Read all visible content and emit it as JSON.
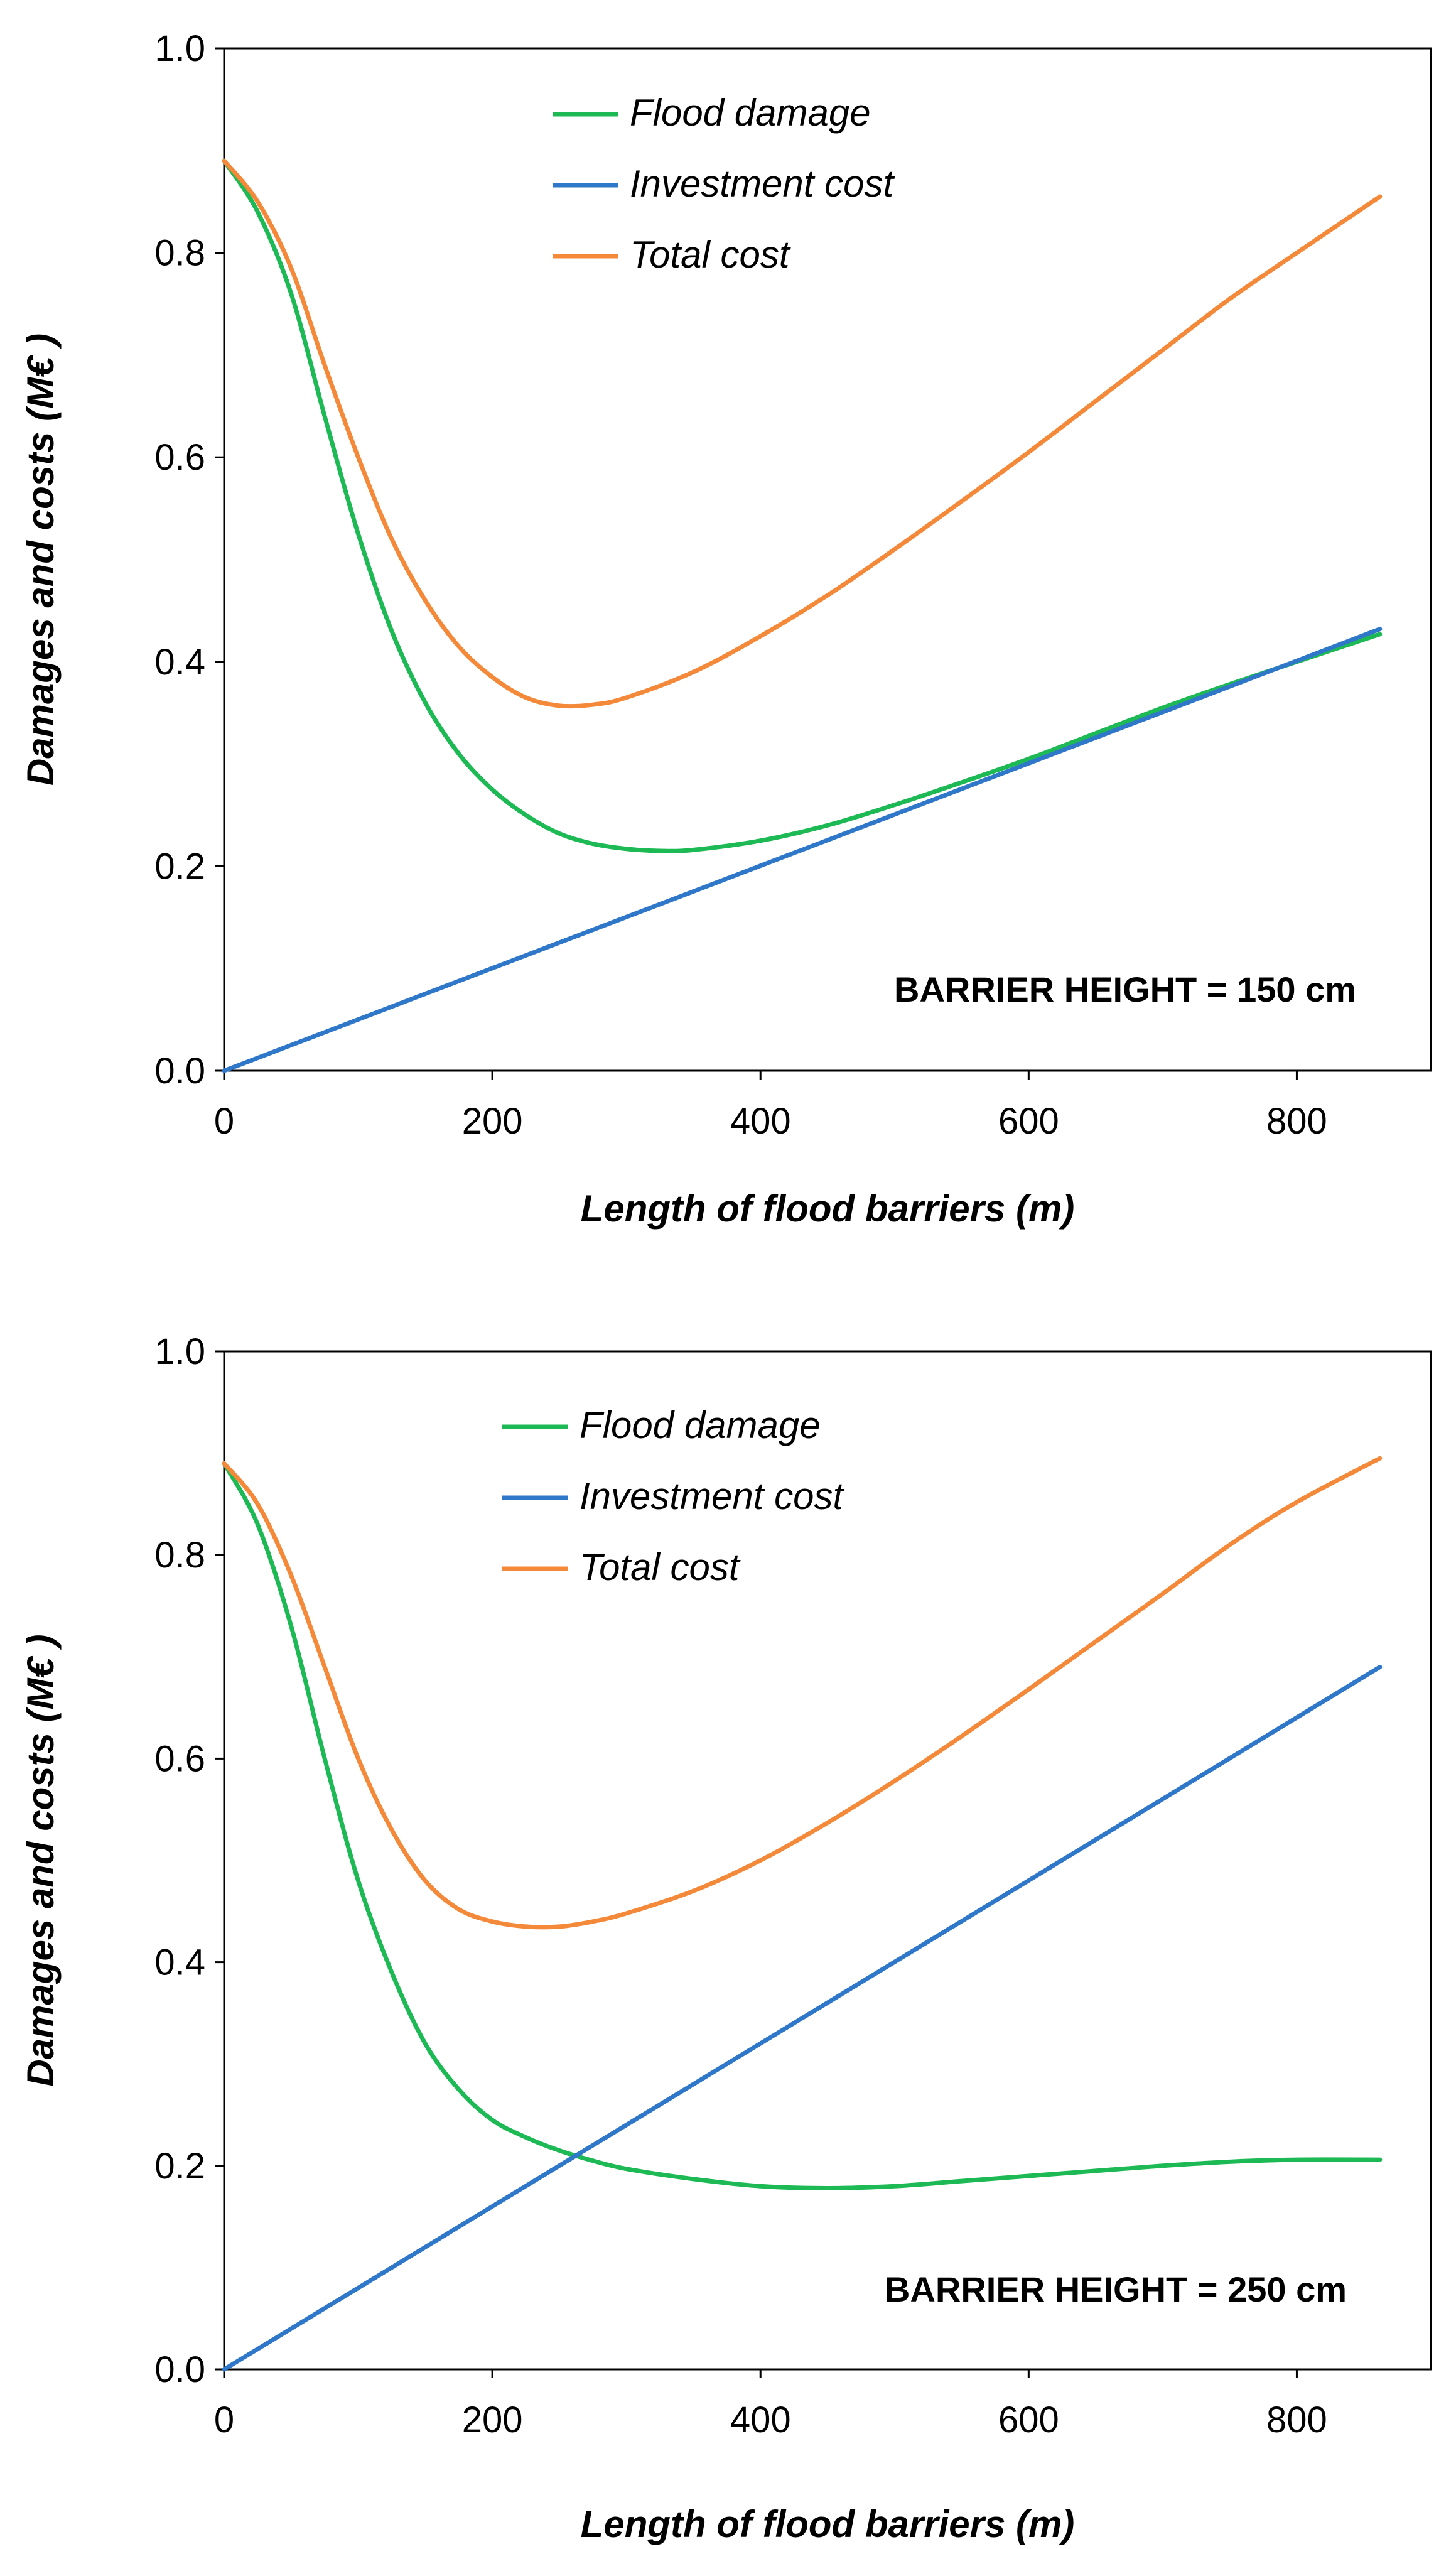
{
  "colors": {
    "flood_damage": "#1db954",
    "investment_cost": "#2f78c9",
    "total_cost": "#f5893a"
  },
  "chart_data": [
    {
      "type": "line",
      "annotation": "BARRIER HEIGHT = 150 cm",
      "xlabel": "Length of flood barriers (m)",
      "ylabel": "Damages and costs (M€ )",
      "xlim": [
        0,
        900
      ],
      "ylim": [
        0,
        1.0
      ],
      "xticks": [
        0,
        200,
        400,
        600,
        800
      ],
      "yticks": [
        0.0,
        0.2,
        0.4,
        0.6,
        0.8,
        1.0
      ],
      "xtick_labels": [
        "0",
        "200",
        "400",
        "600",
        "800"
      ],
      "ytick_labels": [
        "0.0",
        "0.2",
        "0.4",
        "0.6",
        "0.8",
        "1.0"
      ],
      "legend_position": "top-center",
      "series": [
        {
          "name": "Flood damage",
          "color": "#1db954",
          "x": [
            0,
            25,
            50,
            75,
            100,
            125,
            150,
            175,
            200,
            225,
            250,
            275,
            300,
            325,
            350,
            400,
            450,
            500,
            550,
            600,
            650,
            700,
            750,
            800,
            862
          ],
          "y": [
            0.89,
            0.84,
            0.76,
            0.64,
            0.525,
            0.43,
            0.36,
            0.31,
            0.275,
            0.25,
            0.232,
            0.222,
            0.217,
            0.215,
            0.216,
            0.225,
            0.24,
            0.26,
            0.282,
            0.305,
            0.33,
            0.355,
            0.378,
            0.4,
            0.427
          ]
        },
        {
          "name": "Investment cost",
          "color": "#2f78c9",
          "x": [
            0,
            862
          ],
          "y": [
            0.0,
            0.432
          ]
        },
        {
          "name": "Total cost",
          "color": "#f5893a",
          "x": [
            0,
            25,
            50,
            75,
            100,
            125,
            150,
            175,
            200,
            225,
            250,
            275,
            300,
            350,
            400,
            450,
            500,
            550,
            600,
            650,
            700,
            750,
            800,
            862
          ],
          "y": [
            0.89,
            0.85,
            0.785,
            0.69,
            0.6,
            0.52,
            0.46,
            0.415,
            0.385,
            0.365,
            0.357,
            0.358,
            0.365,
            0.39,
            0.425,
            0.465,
            0.51,
            0.557,
            0.605,
            0.655,
            0.705,
            0.755,
            0.8,
            0.855
          ]
        }
      ]
    },
    {
      "type": "line",
      "annotation": "BARRIER HEIGHT = 250 cm",
      "xlabel": "Length of flood barriers (m)",
      "ylabel": "Damages and costs (M€ )",
      "xlim": [
        0,
        900
      ],
      "ylim": [
        0,
        1.0
      ],
      "xticks": [
        0,
        200,
        400,
        600,
        800
      ],
      "yticks": [
        0.0,
        0.2,
        0.4,
        0.6,
        0.8,
        1.0
      ],
      "xtick_labels": [
        "0",
        "200",
        "400",
        "600",
        "800"
      ],
      "ytick_labels": [
        "0.0",
        "0.2",
        "0.4",
        "0.6",
        "0.8",
        "1.0"
      ],
      "legend_position": "top-center",
      "series": [
        {
          "name": "Flood damage",
          "color": "#1db954",
          "x": [
            0,
            25,
            50,
            75,
            100,
            125,
            150,
            175,
            200,
            225,
            250,
            275,
            300,
            350,
            400,
            450,
            500,
            550,
            600,
            650,
            700,
            750,
            800,
            862
          ],
          "y": [
            0.89,
            0.83,
            0.73,
            0.6,
            0.48,
            0.39,
            0.32,
            0.275,
            0.245,
            0.228,
            0.215,
            0.205,
            0.197,
            0.187,
            0.18,
            0.178,
            0.18,
            0.185,
            0.19,
            0.195,
            0.2,
            0.204,
            0.206,
            0.206
          ]
        },
        {
          "name": "Investment cost",
          "color": "#2f78c9",
          "x": [
            0,
            862
          ],
          "y": [
            0.0,
            0.69
          ]
        },
        {
          "name": "Total cost",
          "color": "#f5893a",
          "x": [
            0,
            25,
            50,
            75,
            100,
            125,
            150,
            175,
            200,
            225,
            250,
            275,
            300,
            350,
            400,
            450,
            500,
            550,
            600,
            650,
            700,
            750,
            800,
            862
          ],
          "y": [
            0.89,
            0.85,
            0.78,
            0.69,
            0.6,
            0.53,
            0.48,
            0.452,
            0.44,
            0.435,
            0.435,
            0.44,
            0.448,
            0.47,
            0.5,
            0.537,
            0.578,
            0.622,
            0.668,
            0.715,
            0.762,
            0.81,
            0.852,
            0.895
          ]
        }
      ]
    }
  ]
}
